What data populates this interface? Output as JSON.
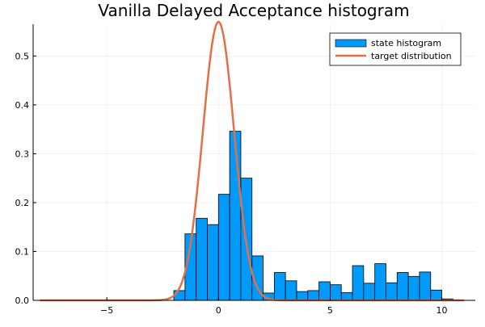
{
  "chart_data": {
    "type": "bar",
    "title": "Vanilla Delayed Acceptance histogram",
    "xlabel": "",
    "ylabel": "",
    "xlim": [
      -8.3,
      11.5
    ],
    "ylim": [
      0,
      0.565
    ],
    "x_ticks": [
      -5,
      0,
      5,
      10
    ],
    "x_tick_labels": [
      "−5",
      "0",
      "5",
      "10"
    ],
    "y_ticks": [
      0.0,
      0.1,
      0.2,
      0.3,
      0.4,
      0.5
    ],
    "y_tick_labels": [
      "0.0",
      "0.1",
      "0.2",
      "0.3",
      "0.4",
      "0.5"
    ],
    "grid": true,
    "legend_position": "top-right",
    "series": [
      {
        "name": "state histogram",
        "kind": "histogram",
        "color": "#009AFA",
        "bin_width": 0.5,
        "bin_starts": [
          -2.0,
          -1.5,
          -1.0,
          -0.5,
          0.0,
          0.5,
          1.0,
          1.5,
          2.0,
          2.5,
          3.0,
          3.5,
          4.0,
          4.5,
          5.0,
          5.5,
          6.0,
          6.5,
          7.0,
          7.5,
          8.0,
          8.5,
          9.0,
          9.5,
          10.0
        ],
        "values": [
          0.02,
          0.136,
          0.168,
          0.155,
          0.217,
          0.346,
          0.25,
          0.091,
          0.015,
          0.057,
          0.04,
          0.018,
          0.02,
          0.038,
          0.032,
          0.016,
          0.071,
          0.035,
          0.075,
          0.036,
          0.057,
          0.049,
          0.058,
          0.021,
          0.003
        ]
      },
      {
        "name": "target distribution",
        "kind": "line",
        "color": "#E26F46",
        "distribution": "normal",
        "mean": 0,
        "sd": 0.7,
        "x_range": [
          -8,
          11
        ]
      }
    ]
  }
}
